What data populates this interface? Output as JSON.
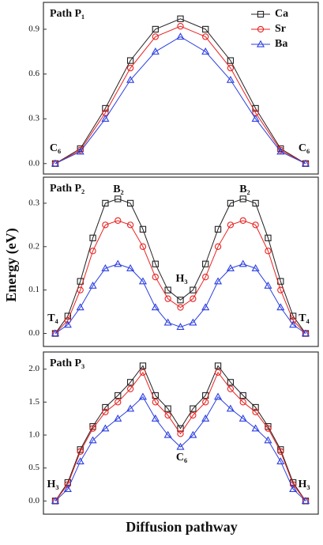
{
  "ylabel": "Energy (eV)",
  "xlabel": "Diffusion pathway",
  "chart_data": [
    {
      "type": "line",
      "title": "Path P₁",
      "legend": "top-right",
      "annotations": [
        "C₆",
        "C₆"
      ],
      "ylim": [
        -0.07,
        1.08
      ],
      "yticks": [
        {
          "value": 0,
          "label": "0.0"
        },
        0.3,
        0.6,
        0.9
      ],
      "series": [
        {
          "name": "Ca",
          "color": "#222222",
          "marker": "square",
          "values": [
            0,
            0.1,
            0.37,
            0.69,
            0.9,
            0.97,
            0.9,
            0.69,
            0.37,
            0.1,
            0
          ]
        },
        {
          "name": "Sr",
          "color": "#e8211f",
          "marker": "circle",
          "values": [
            0,
            0.09,
            0.34,
            0.64,
            0.85,
            0.92,
            0.85,
            0.64,
            0.34,
            0.09,
            0
          ]
        },
        {
          "name": "Ba",
          "color": "#2b3fe0",
          "marker": "triangle",
          "values": [
            0,
            0.08,
            0.3,
            0.56,
            0.75,
            0.85,
            0.75,
            0.56,
            0.3,
            0.08,
            0
          ]
        }
      ]
    },
    {
      "type": "line",
      "title": "Path P₂",
      "annotations": [
        "B₂",
        "B₂",
        "H₃",
        "T₄",
        "T₄"
      ],
      "ylim": [
        -0.03,
        0.36
      ],
      "yticks": [
        {
          "value": 0,
          "label": "0.0"
        },
        0.1,
        0.2,
        0.3
      ],
      "series": [
        {
          "color": "#222222",
          "marker": "square",
          "values": [
            0,
            0.04,
            0.12,
            0.22,
            0.3,
            0.31,
            0.3,
            0.24,
            0.16,
            0.1,
            0.077,
            0.1,
            0.16,
            0.24,
            0.3,
            0.31,
            0.3,
            0.22,
            0.12,
            0.04,
            0
          ]
        },
        {
          "color": "#e8211f",
          "marker": "circle",
          "values": [
            0,
            0.03,
            0.1,
            0.19,
            0.25,
            0.26,
            0.25,
            0.2,
            0.13,
            0.08,
            0.06,
            0.08,
            0.13,
            0.2,
            0.25,
            0.26,
            0.25,
            0.19,
            0.1,
            0.03,
            0
          ]
        },
        {
          "color": "#2b3fe0",
          "marker": "triangle",
          "values": [
            0,
            0.02,
            0.06,
            0.11,
            0.15,
            0.16,
            0.15,
            0.12,
            0.06,
            0.025,
            0.015,
            0.025,
            0.06,
            0.12,
            0.15,
            0.16,
            0.15,
            0.11,
            0.06,
            0.02,
            0
          ]
        }
      ]
    },
    {
      "type": "line",
      "title": "Path P₃",
      "annotations": [
        "C₆",
        "H₃",
        "H₃"
      ],
      "ylim": [
        -0.2,
        2.26
      ],
      "yticks": [
        {
          "value": 0,
          "label": "0.0"
        },
        0.5,
        {
          "value": 1,
          "label": "1.0"
        },
        1.5,
        {
          "value": 2,
          "label": "2.0"
        }
      ],
      "series": [
        {
          "color": "#222222",
          "marker": "square",
          "values": [
            0,
            0.28,
            0.78,
            1.13,
            1.42,
            1.6,
            1.8,
            2.05,
            1.6,
            1.4,
            1.1,
            1.4,
            1.6,
            2.05,
            1.8,
            1.6,
            1.42,
            1.13,
            0.78,
            0.28,
            0
          ]
        },
        {
          "color": "#e8211f",
          "marker": "circle",
          "values": [
            0,
            0.25,
            0.75,
            1.1,
            1.35,
            1.5,
            1.7,
            1.95,
            1.5,
            1.3,
            1.02,
            1.3,
            1.5,
            1.95,
            1.7,
            1.5,
            1.35,
            1.1,
            0.75,
            0.25,
            0
          ]
        },
        {
          "color": "#2b3fe0",
          "marker": "triangle",
          "values": [
            0,
            0.18,
            0.6,
            0.92,
            1.1,
            1.25,
            1.4,
            1.58,
            1.25,
            1.0,
            0.82,
            1.0,
            1.25,
            1.58,
            1.4,
            1.25,
            1.1,
            0.92,
            0.6,
            0.18,
            0
          ]
        }
      ]
    }
  ]
}
